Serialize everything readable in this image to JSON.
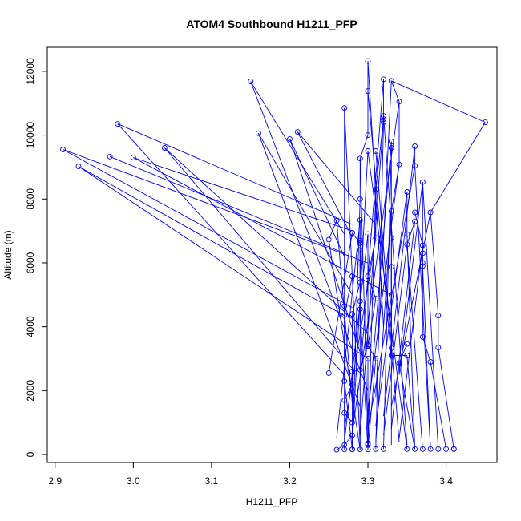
{
  "chart_data": {
    "type": "line",
    "title": "ATOM4 Southbound H1211_PFP",
    "xlabel": "H1211_PFP",
    "ylabel": "Altitude (m)",
    "xlim": [
      2.89,
      3.465
    ],
    "ylim": [
      -250,
      12750
    ],
    "xticks": [
      2.9,
      3.0,
      3.1,
      3.2,
      3.3,
      3.4
    ],
    "yticks": [
      0,
      2000,
      4000,
      6000,
      8000,
      10000,
      12000
    ],
    "grid": false,
    "legend": "none",
    "marker": "open-circle",
    "series_color": "#0000ff",
    "series": [
      {
        "points": [
          [
            3.45,
            10400
          ],
          [
            3.38,
            7580
          ],
          [
            3.39,
            4350
          ],
          [
            3.39,
            3350
          ],
          [
            3.38,
            2900
          ],
          [
            3.37,
            3680
          ],
          [
            3.37,
            6000
          ],
          [
            3.37,
            8530
          ],
          [
            3.36,
            9650
          ],
          [
            3.36,
            9040
          ],
          [
            3.36,
            7300
          ],
          [
            3.35,
            6580
          ],
          [
            3.35,
            3460
          ],
          [
            3.34,
            2860
          ],
          [
            3.33,
            3330
          ],
          [
            3.33,
            5000
          ],
          [
            3.33,
            6780
          ],
          [
            3.33,
            7620
          ],
          [
            3.34,
            9080
          ],
          [
            3.34,
            11050
          ],
          [
            3.33,
            11700
          ],
          [
            3.32,
            11750
          ],
          [
            3.32,
            10500
          ],
          [
            3.31,
            8300
          ],
          [
            3.31,
            6780
          ],
          [
            3.3,
            5580
          ],
          [
            3.3,
            3440
          ],
          [
            3.29,
            2650
          ],
          [
            3.28,
            2600
          ],
          [
            3.28,
            2200
          ],
          [
            3.27,
            1700
          ],
          [
            3.27,
            1300
          ],
          [
            3.28,
            1000
          ],
          [
            3.28,
            600
          ],
          [
            3.27,
            300
          ],
          [
            3.26,
            150
          ],
          [
            3.27,
            160
          ],
          [
            3.28,
            160
          ],
          [
            3.28,
            160
          ],
          [
            3.29,
            160
          ],
          [
            3.3,
            160
          ],
          [
            3.31,
            170
          ],
          [
            3.32,
            170
          ],
          [
            3.35,
            170
          ],
          [
            3.36,
            170
          ],
          [
            3.37,
            170
          ],
          [
            3.38,
            170
          ],
          [
            3.39,
            170
          ],
          [
            3.4,
            170
          ],
          [
            3.41,
            170
          ],
          [
            3.41,
            170
          ],
          [
            3.3,
            12320
          ],
          [
            3.3,
            11380
          ],
          [
            3.3,
            10000
          ],
          [
            3.29,
            9270
          ],
          [
            3.29,
            8000
          ],
          [
            3.29,
            7340
          ],
          [
            3.29,
            6700
          ],
          [
            3.28,
            5580
          ],
          [
            3.27,
            4360
          ],
          [
            3.27,
            10850
          ],
          [
            3.27,
            4650
          ],
          [
            3.27,
            2300
          ],
          [
            3.3,
            6900
          ],
          [
            3.3,
            5580
          ],
          [
            3.31,
            4880
          ],
          [
            3.3,
            3400
          ],
          [
            3.31,
            3000
          ],
          [
            3.3,
            3000
          ],
          [
            3.3,
            350
          ],
          [
            3.3,
            300
          ],
          [
            3.32,
            10600
          ],
          [
            3.32,
            10400
          ],
          [
            3.33,
            9800
          ],
          [
            3.33,
            9600
          ],
          [
            3.31,
            9500
          ],
          [
            3.3,
            9500
          ],
          [
            3.35,
            8220
          ],
          [
            3.35,
            6900
          ],
          [
            3.36,
            7580
          ],
          [
            3.37,
            6550
          ],
          [
            3.37,
            6300
          ],
          [
            3.37,
            5900
          ],
          [
            3.33,
            5880
          ],
          [
            3.33,
            3100
          ],
          [
            3.35,
            3100
          ],
          [
            3.25,
            2550
          ],
          [
            3.28,
            6940
          ],
          [
            3.29,
            6620
          ],
          [
            3.29,
            4800
          ],
          [
            3.29,
            4550
          ],
          [
            3.26,
            7320
          ],
          [
            3.25,
            6730
          ],
          [
            3.21,
            10100
          ],
          [
            3.2,
            9880
          ],
          [
            3.16,
            10060
          ],
          [
            3.15,
            11680
          ],
          [
            3.04,
            9600
          ],
          [
            3.0,
            9300
          ],
          [
            2.98,
            10350
          ],
          [
            2.97,
            9330
          ],
          [
            2.93,
            9020
          ],
          [
            2.91,
            9550
          ],
          [
            3.29,
            6400
          ],
          [
            3.29,
            6000
          ],
          [
            3.29,
            5400
          ],
          [
            3.28,
            4400
          ]
        ],
        "traces": [
          [
            3.45,
            10400,
            3.38,
            7580
          ],
          [
            3.38,
            7580,
            3.39,
            4350
          ],
          [
            3.39,
            4350,
            3.39,
            3350
          ],
          [
            3.39,
            3350,
            3.41,
            170
          ],
          [
            3.38,
            2900,
            3.4,
            170
          ],
          [
            3.38,
            2900,
            3.37,
            3680
          ],
          [
            3.37,
            3680,
            3.37,
            6000
          ],
          [
            3.37,
            6000,
            3.37,
            8530
          ],
          [
            3.37,
            8530,
            3.39,
            170
          ],
          [
            3.36,
            9650,
            3.36,
            9040
          ],
          [
            3.36,
            9040,
            3.38,
            170
          ],
          [
            3.36,
            7300,
            3.35,
            6580
          ],
          [
            3.35,
            6580,
            3.37,
            170
          ],
          [
            3.35,
            3460,
            3.34,
            2860
          ],
          [
            3.34,
            2860,
            3.36,
            170
          ],
          [
            3.33,
            3330,
            3.33,
            5000
          ],
          [
            3.33,
            5000,
            3.33,
            6780
          ],
          [
            3.33,
            6780,
            3.33,
            7620
          ],
          [
            3.33,
            7620,
            3.34,
            9080
          ],
          [
            3.34,
            9080,
            3.34,
            11050
          ],
          [
            3.34,
            11050,
            3.33,
            11700
          ],
          [
            3.33,
            11700,
            3.45,
            10400
          ],
          [
            3.32,
            11750,
            3.32,
            10500
          ],
          [
            3.32,
            10500,
            3.31,
            8300
          ],
          [
            3.31,
            8300,
            3.31,
            6780
          ],
          [
            3.31,
            6780,
            3.3,
            5580
          ],
          [
            3.3,
            5580,
            3.3,
            3440
          ],
          [
            3.3,
            3440,
            3.29,
            2650
          ],
          [
            3.29,
            2650,
            3.28,
            2600
          ],
          [
            3.28,
            2600,
            3.28,
            2200
          ],
          [
            3.28,
            2200,
            3.27,
            1700
          ],
          [
            3.27,
            1700,
            3.27,
            1300
          ],
          [
            3.27,
            1300,
            3.28,
            1000
          ],
          [
            3.28,
            1000,
            3.28,
            600
          ],
          [
            3.28,
            600,
            3.27,
            300
          ],
          [
            3.27,
            300,
            3.26,
            150
          ],
          [
            3.3,
            12320,
            3.3,
            11380
          ],
          [
            3.3,
            11380,
            3.3,
            10000
          ],
          [
            3.3,
            10000,
            3.29,
            9270
          ],
          [
            3.29,
            9270,
            3.29,
            8000
          ],
          [
            3.29,
            8000,
            3.28,
            160
          ],
          [
            3.29,
            7340,
            3.29,
            6700
          ],
          [
            3.29,
            6700,
            3.29,
            160
          ],
          [
            3.28,
            5580,
            3.27,
            4360
          ],
          [
            3.27,
            4360,
            3.27,
            160
          ],
          [
            3.27,
            10850,
            3.27,
            4650
          ],
          [
            3.27,
            4650,
            3.27,
            2300
          ],
          [
            3.27,
            2300,
            3.28,
            160
          ],
          [
            3.3,
            6900,
            3.3,
            5580
          ],
          [
            3.3,
            5580,
            3.31,
            4880
          ],
          [
            3.31,
            4880,
            3.3,
            3400
          ],
          [
            3.3,
            3400,
            3.31,
            3000
          ],
          [
            3.31,
            3000,
            3.3,
            160
          ],
          [
            3.3,
            3000,
            3.3,
            350
          ],
          [
            3.3,
            350,
            3.3,
            300
          ],
          [
            3.32,
            10600,
            3.32,
            10400
          ],
          [
            3.32,
            10400,
            3.31,
            170
          ],
          [
            3.33,
            9800,
            3.33,
            9600
          ],
          [
            3.33,
            9600,
            3.32,
            170
          ],
          [
            3.31,
            9500,
            3.3,
            9500
          ],
          [
            3.3,
            9500,
            3.35,
            170
          ],
          [
            3.35,
            8220,
            3.35,
            6900
          ],
          [
            3.35,
            6900,
            3.36,
            170
          ],
          [
            3.36,
            7580,
            3.37,
            6550
          ],
          [
            3.37,
            6550,
            3.37,
            6300
          ],
          [
            3.37,
            6300,
            3.37,
            5900
          ],
          [
            3.37,
            5900,
            3.38,
            170
          ],
          [
            3.33,
            5880,
            3.33,
            3100
          ],
          [
            3.33,
            3100,
            3.35,
            3100
          ],
          [
            3.35,
            3100,
            3.36,
            170
          ],
          [
            3.25,
            2550,
            3.28,
            6940
          ],
          [
            3.28,
            6940,
            3.29,
            6620
          ],
          [
            3.29,
            6620,
            3.29,
            4800
          ],
          [
            3.29,
            4800,
            3.29,
            4550
          ],
          [
            3.29,
            4550,
            3.3,
            160
          ],
          [
            3.26,
            7320,
            3.25,
            6730
          ],
          [
            3.25,
            6730,
            3.29,
            160
          ],
          [
            3.21,
            10100,
            3.28,
            6800
          ],
          [
            3.2,
            9880,
            3.27,
            6200
          ],
          [
            3.16,
            10060,
            3.28,
            5000
          ],
          [
            3.15,
            11680,
            3.27,
            6900
          ],
          [
            3.04,
            9600,
            3.28,
            2700
          ],
          [
            3.0,
            9300,
            3.28,
            7000
          ],
          [
            2.98,
            10350,
            3.28,
            7200
          ],
          [
            2.97,
            9330,
            3.27,
            6300
          ],
          [
            2.93,
            9020,
            3.27,
            4350
          ],
          [
            2.91,
            9550,
            3.3,
            6000
          ],
          [
            3.29,
            6400,
            3.29,
            6000
          ],
          [
            3.29,
            6000,
            3.29,
            5400
          ],
          [
            3.29,
            5400,
            3.28,
            4400
          ],
          [
            3.28,
            4400,
            3.28,
            160
          ],
          [
            3.04,
            9600,
            3.3,
            3800
          ],
          [
            3.0,
            9300,
            3.33,
            5000
          ],
          [
            2.98,
            10350,
            3.27,
            2500
          ],
          [
            2.91,
            9550,
            3.28,
            4600
          ],
          [
            2.93,
            9020,
            3.3,
            3000
          ],
          [
            3.15,
            11680,
            3.3,
            2000
          ],
          [
            3.16,
            10060,
            3.29,
            1500
          ],
          [
            3.2,
            9880,
            3.29,
            3200
          ],
          [
            3.21,
            10100,
            3.31,
            7200
          ],
          [
            3.34,
            9080,
            3.3,
            1400
          ],
          [
            3.32,
            11750,
            3.29,
            2500
          ],
          [
            3.33,
            11700,
            3.31,
            1800
          ],
          [
            3.3,
            12320,
            3.32,
            4000
          ],
          [
            3.3,
            11380,
            3.33,
            3000
          ],
          [
            3.33,
            9800,
            3.3,
            1100
          ],
          [
            3.35,
            8220,
            3.31,
            900
          ],
          [
            3.32,
            10500,
            3.29,
            600
          ],
          [
            3.36,
            9650,
            3.32,
            1200
          ],
          [
            3.36,
            9040,
            3.3,
            800
          ],
          [
            3.37,
            8530,
            3.34,
            2500
          ],
          [
            3.38,
            7580,
            3.33,
            1500
          ],
          [
            3.3,
            9500,
            3.28,
            300
          ],
          [
            3.31,
            8300,
            3.3,
            200
          ],
          [
            3.29,
            9270,
            3.3,
            500
          ],
          [
            3.27,
            10850,
            3.29,
            300
          ],
          [
            3.31,
            9500,
            3.34,
            400
          ],
          [
            3.32,
            10600,
            3.35,
            300
          ],
          [
            3.33,
            9600,
            3.33,
            300
          ],
          [
            3.37,
            6550,
            3.34,
            500
          ],
          [
            3.36,
            7300,
            3.33,
            800
          ],
          [
            3.35,
            6580,
            3.32,
            600
          ],
          [
            3.33,
            7620,
            3.31,
            400
          ],
          [
            3.34,
            11050,
            3.28,
            700
          ],
          [
            3.31,
            6780,
            3.27,
            800
          ],
          [
            3.3,
            6900,
            3.27,
            400
          ],
          [
            3.29,
            7340,
            3.26,
            500
          ],
          [
            3.26,
            7320,
            3.28,
            1600
          ]
        ]
      }
    ]
  }
}
